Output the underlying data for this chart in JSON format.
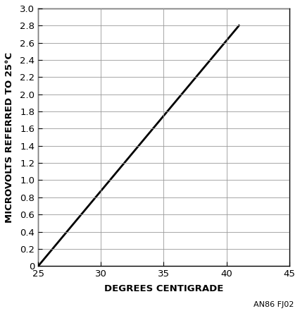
{
  "x_data": [
    25,
    41
  ],
  "y_data": [
    0,
    2.8
  ],
  "xlim": [
    25,
    45
  ],
  "ylim": [
    0,
    3.0
  ],
  "xticks": [
    25,
    30,
    35,
    40,
    45
  ],
  "ytick_values": [
    0,
    0.2,
    0.4,
    0.6,
    0.8,
    1.0,
    1.2,
    1.4,
    1.6,
    1.8,
    2.0,
    2.2,
    2.4,
    2.6,
    2.8,
    3.0
  ],
  "ytick_labels": [
    "0",
    "0.2",
    "0.4",
    "0.6",
    "0.8",
    "1.0",
    "1.2",
    "1.4",
    "1.6",
    "1.8",
    "2.0",
    "2.2",
    "2.4",
    "2.6",
    "2.8",
    "3.0"
  ],
  "xlabel": "DEGREES CENTIGRADE",
  "ylabel": "MICROVOLTS REFERRED TO 25°C",
  "line_color": "#000000",
  "line_width": 2.0,
  "grid_color": "#999999",
  "background_color": "#ffffff",
  "annotation": "AN86 FJ02",
  "xlabel_fontsize": 9.5,
  "ylabel_fontsize": 9.5,
  "tick_fontsize": 9.5,
  "annotation_fontsize": 8
}
